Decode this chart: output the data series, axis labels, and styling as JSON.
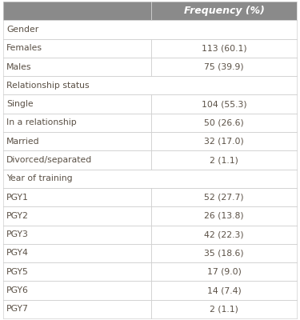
{
  "header_label": "Frequency (%)",
  "header_bg": "#8a8a8a",
  "header_text_color": "#ffffff",
  "table_bg": "#ffffff",
  "section_bg": "#ffffff",
  "row_bg": "#ffffff",
  "border_color": "#d0d0d0",
  "text_color": "#5a5045",
  "sections": [
    {
      "section": "Gender",
      "rows": [
        {
          "label": "Females",
          "value": "113 (60.1)"
        },
        {
          "label": "Males",
          "value": "75 (39.9)"
        }
      ]
    },
    {
      "section": "Relationship status",
      "rows": [
        {
          "label": "Single",
          "value": "104 (55.3)"
        },
        {
          "label": "In a relationship",
          "value": "50 (26.6)"
        },
        {
          "label": "Married",
          "value": "32 (17.0)"
        },
        {
          "label": "Divorced/separated",
          "value": "2 (1.1)"
        }
      ]
    },
    {
      "section": "Year of training",
      "rows": [
        {
          "label": "PGY1",
          "value": "52 (27.7)"
        },
        {
          "label": "PGY2",
          "value": "26 (13.8)"
        },
        {
          "label": "PGY3",
          "value": "42 (22.3)"
        },
        {
          "label": "PGY4",
          "value": "35 (18.6)"
        },
        {
          "label": "PGY5",
          "value": "17 (9.0)"
        },
        {
          "label": "PGY6",
          "value": "14 (7.4)"
        },
        {
          "label": "PGY7",
          "value": "2 (1.1)"
        }
      ]
    }
  ],
  "col_split": 0.505,
  "font_size": 7.8,
  "header_font_size": 9.0,
  "fig_width": 3.75,
  "fig_height": 4.0,
  "dpi": 100
}
